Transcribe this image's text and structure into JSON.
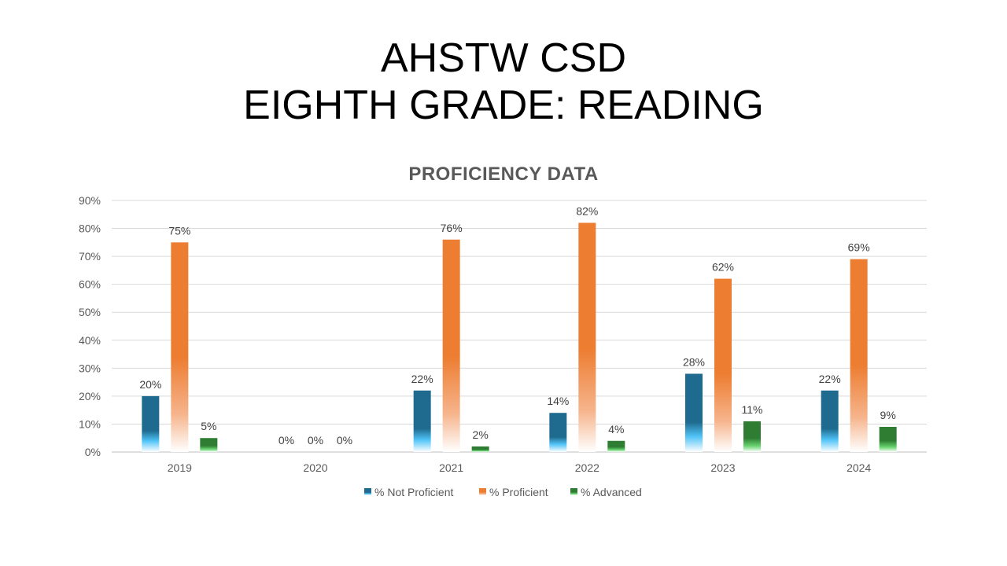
{
  "slide": {
    "title_line1": "AHSTW CSD",
    "title_line2": "EIGHTH GRADE: READING"
  },
  "colors": {
    "not_proficient": "#1f6b8f",
    "not_proficient_light": "#4fc3f7",
    "proficient": "#ed7d31",
    "advanced": "#2e7d32",
    "advanced_light": "#66d36e",
    "gridline": "#d9d9d9",
    "axis": "#bfbfbf"
  },
  "chart_data": {
    "type": "bar",
    "title": "PROFICIENCY DATA",
    "categories": [
      "2019",
      "2020",
      "2021",
      "2022",
      "2023",
      "2024"
    ],
    "series": [
      {
        "name": "% Not Proficient",
        "values": [
          20,
          0,
          22,
          14,
          28,
          22
        ],
        "labels": [
          "20%",
          "0%",
          "22%",
          "14%",
          "28%",
          "22%"
        ]
      },
      {
        "name": "% Proficient",
        "values": [
          75,
          0,
          76,
          82,
          62,
          69
        ],
        "labels": [
          "75%",
          "0%",
          "76%",
          "82%",
          "62%",
          "69%"
        ]
      },
      {
        "name": "% Advanced",
        "values": [
          5,
          0,
          2,
          4,
          11,
          9
        ],
        "labels": [
          "5%",
          "0%",
          "2%",
          "4%",
          "11%",
          "9%"
        ]
      }
    ],
    "ylim": [
      0,
      90
    ],
    "yticks": [
      0,
      10,
      20,
      30,
      40,
      50,
      60,
      70,
      80,
      90
    ],
    "ytick_labels": [
      "0%",
      "10%",
      "20%",
      "30%",
      "40%",
      "50%",
      "60%",
      "70%",
      "80%",
      "90%"
    ],
    "xlabel": "",
    "ylabel": "",
    "grid": true,
    "legend_position": "bottom"
  }
}
